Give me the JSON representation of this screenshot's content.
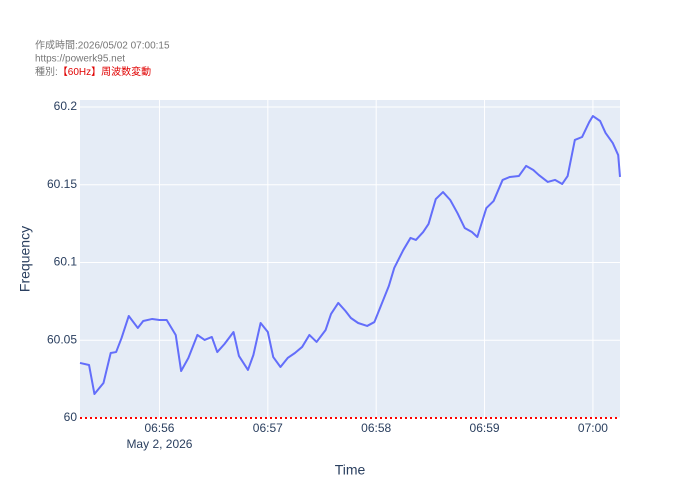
{
  "chart_data": {
    "type": "line",
    "header": [
      "作成時間:2026/05/02 07:00:15",
      "https://powerk95.net",
      "種別:"
    ],
    "header_highlight": "【60Hz】周波数変動",
    "xlabel": "Time",
    "ylabel": "Frequency",
    "xdate_label": "May 2, 2026",
    "xlim": [
      "2026-05-02 06:55:16",
      "2026-05-02 07:00:15"
    ],
    "xticks": [
      {
        "value": "2026-05-02 06:56:00",
        "label": "06:56"
      },
      {
        "value": "2026-05-02 06:57:00",
        "label": "06:57"
      },
      {
        "value": "2026-05-02 06:58:00",
        "label": "06:58"
      },
      {
        "value": "2026-05-02 06:59:00",
        "label": "06:59"
      },
      {
        "value": "2026-05-02 07:00:00",
        "label": "07:00"
      }
    ],
    "ylim": [
      60,
      60.2045
    ],
    "yticks": [
      60,
      60.05,
      60.1,
      60.15,
      60.2
    ],
    "grid": true,
    "hline": {
      "value": 60,
      "color": "#ff0000"
    },
    "x": [
      "2026-05-02 06:55:16",
      "2026-05-02 06:55:21",
      "2026-05-02 06:55:24",
      "2026-05-02 06:55:29",
      "2026-05-02 06:55:33",
      "2026-05-02 06:55:36",
      "2026-05-02 06:55:39",
      "2026-05-02 06:55:43",
      "2026-05-02 06:55:48",
      "2026-05-02 06:55:51",
      "2026-05-02 06:55:56",
      "2026-05-02 06:56:00",
      "2026-05-02 06:56:04",
      "2026-05-02 06:56:09",
      "2026-05-02 06:56:12",
      "2026-05-02 06:56:16",
      "2026-05-02 06:56:21",
      "2026-05-02 06:56:25",
      "2026-05-02 06:56:29",
      "2026-05-02 06:56:32",
      "2026-05-02 06:56:36",
      "2026-05-02 06:56:41",
      "2026-05-02 06:56:44",
      "2026-05-02 06:56:49",
      "2026-05-02 06:56:52",
      "2026-05-02 06:56:56",
      "2026-05-02 06:57:00",
      "2026-05-02 06:57:03",
      "2026-05-02 06:57:07",
      "2026-05-02 06:57:11",
      "2026-05-02 06:57:15",
      "2026-05-02 06:57:19",
      "2026-05-02 06:57:23",
      "2026-05-02 06:57:27",
      "2026-05-02 06:57:32",
      "2026-05-02 06:57:35",
      "2026-05-02 06:57:39",
      "2026-05-02 06:57:43",
      "2026-05-02 06:57:46",
      "2026-05-02 06:57:50",
      "2026-05-02 06:57:55",
      "2026-05-02 06:57:59",
      "2026-05-02 06:58:03",
      "2026-05-02 06:58:07",
      "2026-05-02 06:58:10",
      "2026-05-02 06:58:15",
      "2026-05-02 06:58:19",
      "2026-05-02 06:58:22",
      "2026-05-02 06:58:26",
      "2026-05-02 06:58:29",
      "2026-05-02 06:58:33",
      "2026-05-02 06:58:37",
      "2026-05-02 06:58:41",
      "2026-05-02 06:58:45",
      "2026-05-02 06:58:49",
      "2026-05-02 06:58:53",
      "2026-05-02 06:58:56",
      "2026-05-02 06:59:01",
      "2026-05-02 06:59:05",
      "2026-05-02 06:59:10",
      "2026-05-02 06:59:14",
      "2026-05-02 06:59:19",
      "2026-05-02 06:59:23",
      "2026-05-02 06:59:27",
      "2026-05-02 06:59:30",
      "2026-05-02 06:59:35",
      "2026-05-02 06:59:39",
      "2026-05-02 06:59:43",
      "2026-05-02 06:59:46",
      "2026-05-02 06:59:50",
      "2026-05-02 06:59:54",
      "2026-05-02 06:59:58",
      "2026-05-02 07:00:00",
      "2026-05-02 07:00:04",
      "2026-05-02 07:00:07",
      "2026-05-02 07:00:11",
      "2026-05-02 07:00:14",
      "2026-05-02 07:00:15"
    ],
    "series": [
      {
        "name": "Frequency",
        "color": "#636efa",
        "values": [
          60.0354,
          60.0341,
          60.0154,
          60.0225,
          60.0418,
          60.0424,
          60.0514,
          60.0656,
          60.0579,
          60.0624,
          60.0637,
          60.063,
          60.063,
          60.0534,
          60.0302,
          60.0386,
          60.0534,
          60.0502,
          60.0521,
          60.0424,
          60.0476,
          60.0553,
          60.0399,
          60.0309,
          60.0405,
          60.0611,
          60.0553,
          60.0392,
          60.0328,
          60.0386,
          60.0418,
          60.0457,
          60.0534,
          60.0489,
          60.0566,
          60.0669,
          60.074,
          60.0688,
          60.0643,
          60.0611,
          60.0592,
          60.0617,
          60.0733,
          60.0849,
          60.0965,
          60.108,
          60.1158,
          60.1145,
          60.1196,
          60.1248,
          60.1408,
          60.1453,
          60.1402,
          60.1318,
          60.1222,
          60.1196,
          60.1164,
          60.135,
          60.1395,
          60.1531,
          60.155,
          60.1556,
          60.1621,
          60.1595,
          60.1563,
          60.1518,
          60.1531,
          60.1505,
          60.1556,
          60.1788,
          60.1807,
          60.1904,
          60.1942,
          60.191,
          60.1833,
          60.1768,
          60.1691,
          60.155
        ]
      }
    ]
  }
}
